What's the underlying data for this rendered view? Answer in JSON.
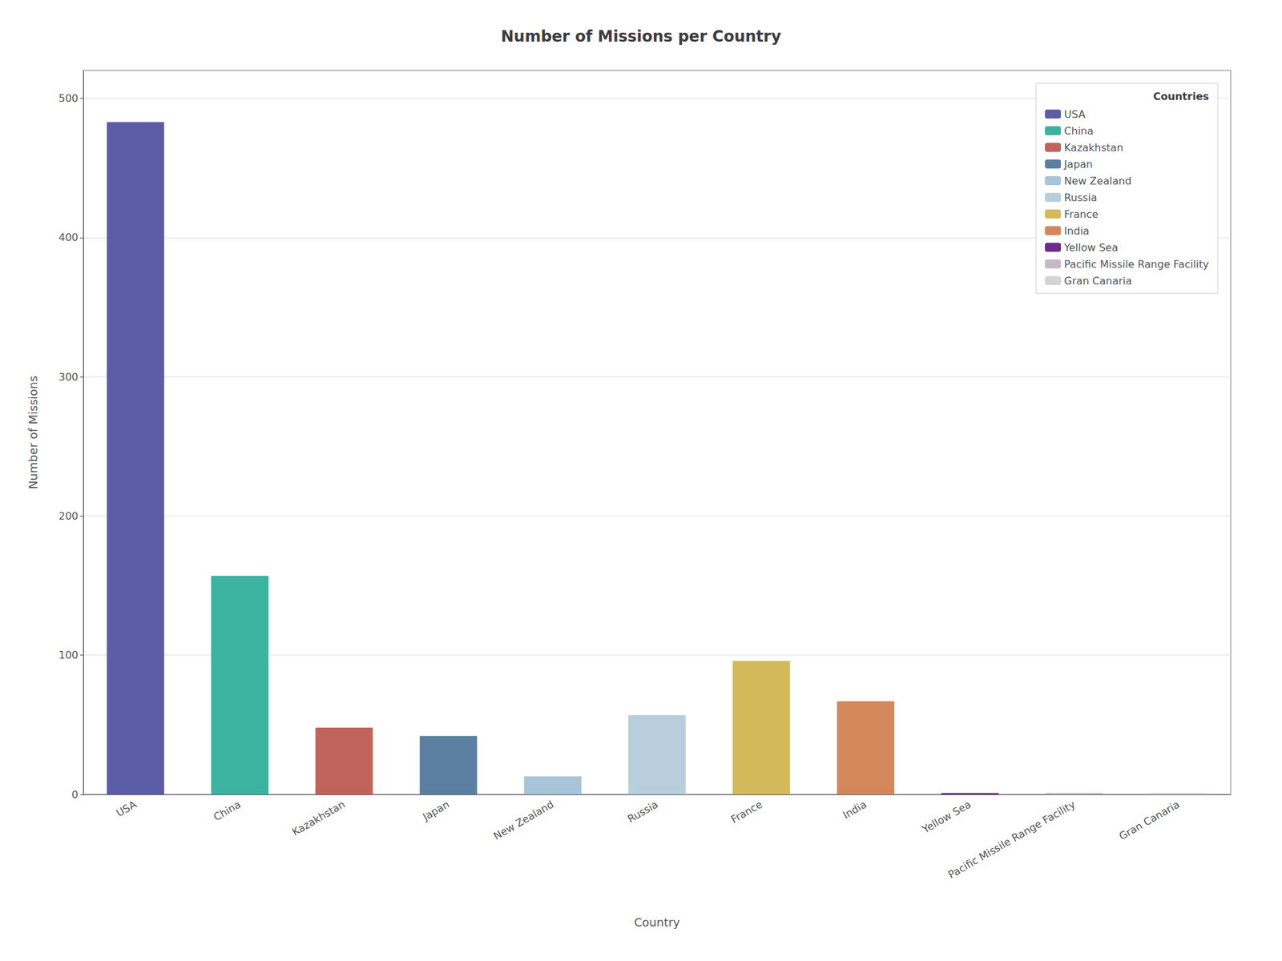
{
  "chart_data": {
    "type": "bar",
    "title": "Number of Missions per Country",
    "xlabel": "Country",
    "ylabel": "Number of Missions",
    "categories": [
      "USA",
      "China",
      "Kazakhstan",
      "Japan",
      "New Zealand",
      "Russia",
      "France",
      "India",
      "Yellow Sea",
      "Pacific Missile Range Facility",
      "Gran Canaria"
    ],
    "values": [
      483,
      157,
      48,
      42,
      13,
      57,
      96,
      67,
      1,
      1,
      1
    ],
    "colors": [
      "#5b5ea6",
      "#3cb3a0",
      "#c0635a",
      "#5a7fa0",
      "#a8c4d8",
      "#b8cedd",
      "#d4b95a",
      "#d4875a",
      "#6b2d8b",
      "#c5b8c8",
      "#d4d4d4"
    ],
    "ylim": [
      0,
      520
    ],
    "yticks": [
      0,
      100,
      200,
      300,
      400,
      500
    ],
    "grid": true,
    "legend": "upper right",
    "legend_title": "Countries"
  }
}
